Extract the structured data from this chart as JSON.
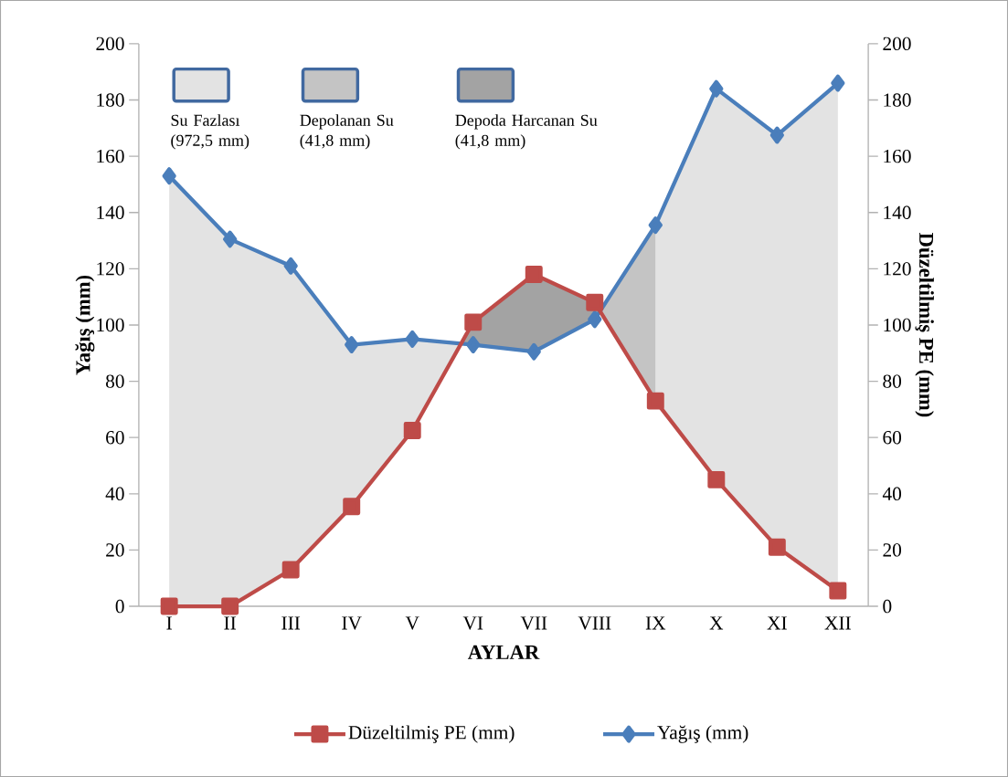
{
  "chart_data": {
    "type": "line",
    "xlabel": "AYLAR",
    "ylabel": "Yağış (mm)",
    "y2label": "Düzeltilmiş PE (mm)",
    "categories": [
      "I",
      "II",
      "III",
      "IV",
      "V",
      "VI",
      "VII",
      "VIII",
      "IX",
      "X",
      "XI",
      "XII"
    ],
    "ylim": [
      0,
      200
    ],
    "yticks": [
      0,
      20,
      40,
      60,
      80,
      100,
      120,
      140,
      160,
      180,
      200
    ],
    "y2lim": [
      0,
      200
    ],
    "y2ticks": [
      0,
      20,
      40,
      60,
      80,
      100,
      120,
      140,
      160,
      180,
      200
    ],
    "legend": "bottom",
    "annotations": [
      "Su Fazlası (972,5 mm)",
      "Depolanan Su (41,8 mm)",
      "Depoda Harcanan Su (41,8 mm)"
    ],
    "series": [
      {
        "name": "Düzeltilmiş PE (mm)",
        "axis": "y2",
        "color": "#be4b48",
        "marker": "square",
        "values": [
          0,
          0,
          13,
          35.5,
          62.5,
          101,
          118,
          108,
          73,
          45,
          21,
          5.5
        ]
      },
      {
        "name": "Yağış (mm)",
        "color": "#4a7ebb",
        "marker": "diamond",
        "values": [
          153,
          130.5,
          121,
          93,
          95,
          93,
          90.5,
          102,
          135.5,
          184,
          167.5,
          186
        ]
      }
    ]
  }
}
